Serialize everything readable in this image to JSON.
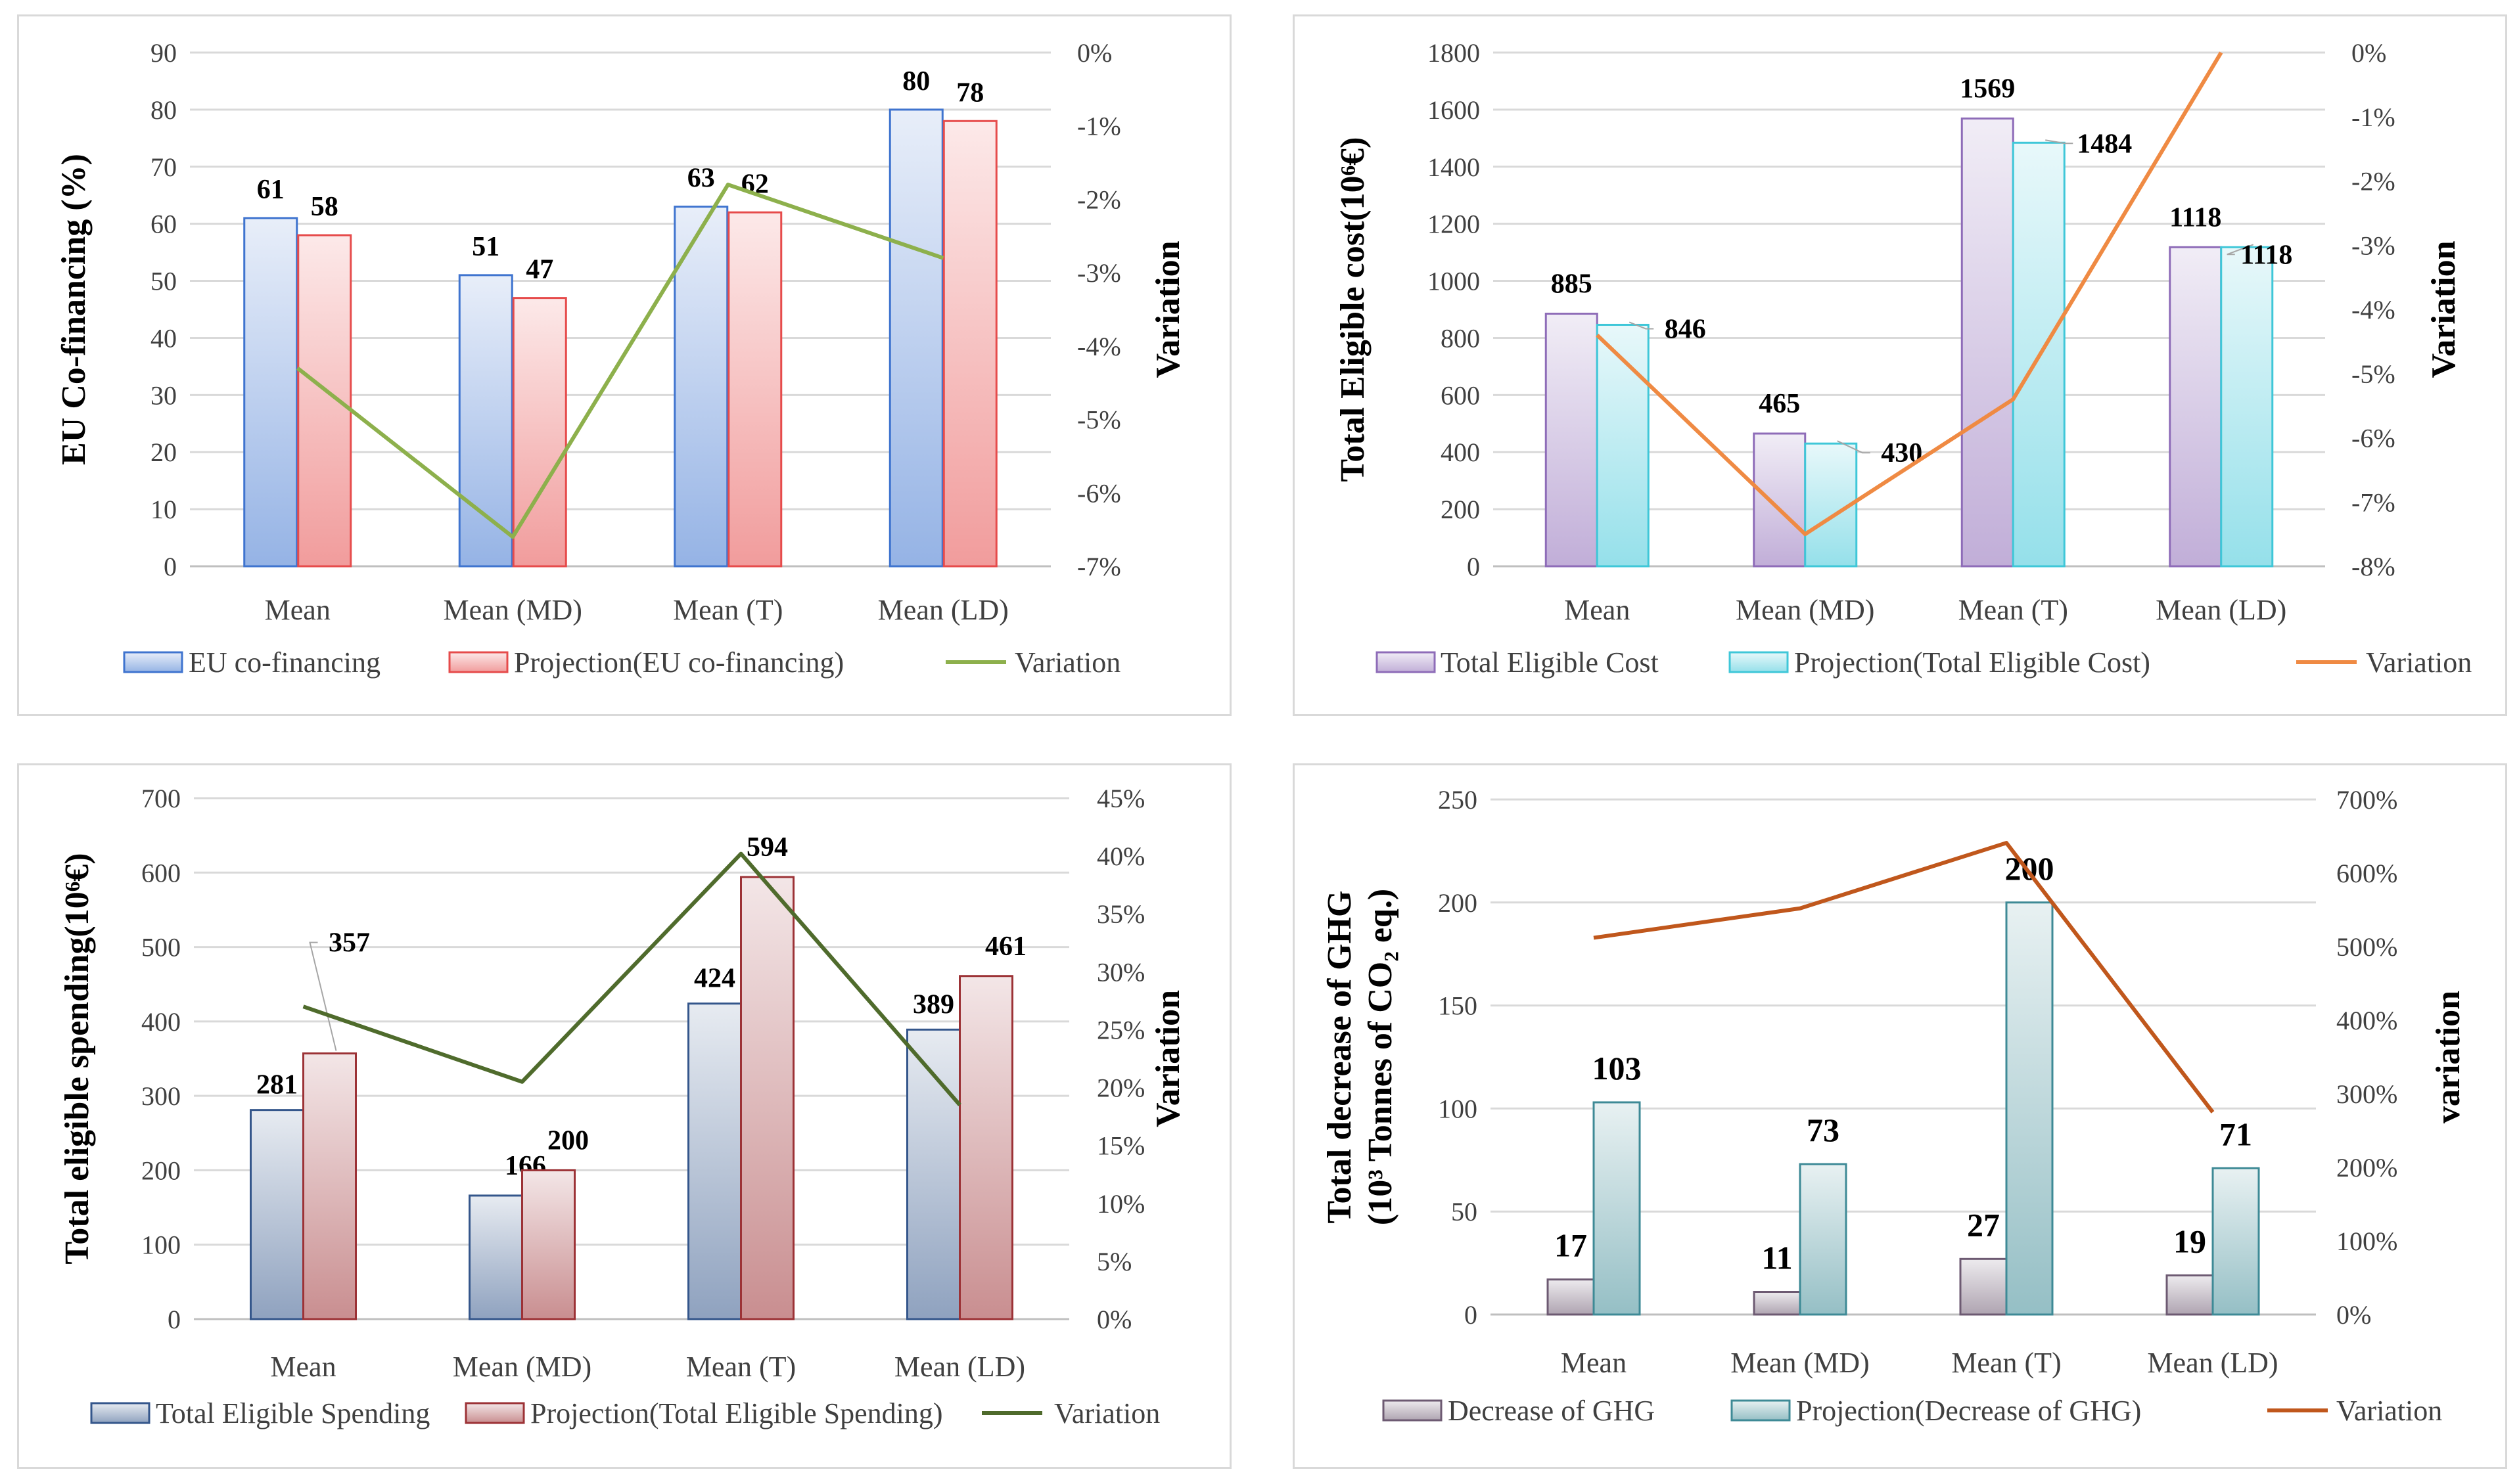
{
  "chart_data": [
    {
      "type": "bar",
      "categories": [
        "Mean",
        "Mean (MD)",
        "Mean (T)",
        "Mean (LD)"
      ],
      "ylabel": "EU Co-financing (%)",
      "y2label": "Variation",
      "ylim": [
        0,
        90
      ],
      "yticks": [
        "0",
        "10",
        "20",
        "30",
        "40",
        "50",
        "60",
        "70",
        "80",
        "90"
      ],
      "y2lim": [
        -7,
        0
      ],
      "y2ticks": [
        "-7%",
        "-6%",
        "-5%",
        "-4%",
        "-3%",
        "-2%",
        "-1%",
        "0%"
      ],
      "series": [
        {
          "name": "EU co-financing",
          "values": [
            61,
            51,
            63,
            80
          ],
          "labels": [
            "61",
            "51",
            "63",
            "80"
          ]
        },
        {
          "name": "Projection(EU co-financing)",
          "values": [
            58,
            47,
            62,
            78
          ],
          "labels": [
            "58",
            "47",
            "62",
            "78"
          ]
        },
        {
          "name": "Variation",
          "type": "line",
          "axis": "secondary",
          "values": [
            -4.3,
            -6.6,
            -1.8,
            -2.8
          ]
        }
      ],
      "colors": {
        "bar1": "#3f74cf",
        "bar2": "#e64b4b",
        "line": "#8db04c"
      }
    },
    {
      "type": "bar",
      "categories": [
        "Mean",
        "Mean (MD)",
        "Mean (T)",
        "Mean (LD)"
      ],
      "ylabel": "Total Eligible cost(10⁶€)",
      "y2label": "Variation",
      "ylim": [
        0,
        1800
      ],
      "yticks": [
        "0",
        "200",
        "400",
        "600",
        "800",
        "1000",
        "1200",
        "1400",
        "1600",
        "1800"
      ],
      "y2lim": [
        -8,
        0
      ],
      "y2ticks": [
        "-8%",
        "-7%",
        "-6%",
        "-5%",
        "-4%",
        "-3%",
        "-2%",
        "-1%",
        "0%"
      ],
      "series": [
        {
          "name": "Total Eligible Cost",
          "values": [
            885,
            465,
            1569,
            1118
          ],
          "labels": [
            "885",
            "465",
            "1569",
            "1118"
          ]
        },
        {
          "name": "Projection(Total Eligible Cost)",
          "values": [
            846,
            430,
            1484,
            1118
          ],
          "labels": [
            "846",
            "430",
            "1484",
            "1118"
          ]
        },
        {
          "name": "Variation",
          "type": "line",
          "axis": "secondary",
          "values": [
            -4.4,
            -7.5,
            -5.4,
            0.0
          ]
        }
      ],
      "colors": {
        "bar1": "#8e6cb8",
        "bar2": "#3fc7d8",
        "line": "#ef8a43"
      }
    },
    {
      "type": "bar",
      "categories": [
        "Mean",
        "Mean (MD)",
        "Mean (T)",
        "Mean (LD)"
      ],
      "ylabel": "Total eligible spending(10⁶€)",
      "y2label": "Variation",
      "ylim": [
        0,
        700
      ],
      "yticks": [
        "0",
        "100",
        "200",
        "300",
        "400",
        "500",
        "600",
        "700"
      ],
      "y2lim": [
        0,
        45
      ],
      "y2ticks": [
        "0%",
        "5%",
        "10%",
        "15%",
        "20%",
        "25%",
        "30%",
        "35%",
        "40%",
        "45%"
      ],
      "series": [
        {
          "name": "Total Eligible Spending",
          "values": [
            281,
            166,
            424,
            389
          ],
          "labels": [
            "281",
            "166",
            "424",
            "389"
          ]
        },
        {
          "name": "Projection(Total Eligible Spending)",
          "values": [
            357,
            200,
            594,
            461
          ],
          "labels": [
            "357",
            "200",
            "594",
            "461"
          ]
        },
        {
          "name": "Variation",
          "type": "line",
          "axis": "secondary",
          "values": [
            27,
            20.5,
            40.2,
            18.5
          ]
        }
      ],
      "colors": {
        "bar1": "#34568b",
        "bar2": "#9c3236",
        "line": "#4f6b2c"
      }
    },
    {
      "type": "bar",
      "categories": [
        "Mean",
        "Mean (MD)",
        "Mean (T)",
        "Mean (LD)"
      ],
      "ylabel": "Total decrease of GHG",
      "ylabel2": "(10³ Tonnes of CO₂ eq.)",
      "y2label": "variation",
      "ylim": [
        0,
        250
      ],
      "yticks": [
        "0",
        "50",
        "100",
        "150",
        "200",
        "250"
      ],
      "y2lim": [
        0,
        700
      ],
      "y2ticks": [
        "0%",
        "100%",
        "200%",
        "300%",
        "400%",
        "500%",
        "600%",
        "700%"
      ],
      "series": [
        {
          "name": "Decrease of GHG",
          "values": [
            17,
            11,
            27,
            19
          ],
          "labels": [
            "17",
            "11",
            "27",
            "19"
          ]
        },
        {
          "name": "Projection(Decrease of GHG)",
          "values": [
            103,
            73,
            200,
            71
          ],
          "labels": [
            "103",
            "73",
            "200",
            "71"
          ]
        },
        {
          "name": "Variation",
          "type": "line",
          "axis": "secondary",
          "values": [
            512,
            552,
            641,
            275
          ]
        }
      ],
      "colors": {
        "bar1": "#6d5a72",
        "bar2": "#3e8a96",
        "line": "#c0571c"
      }
    }
  ]
}
